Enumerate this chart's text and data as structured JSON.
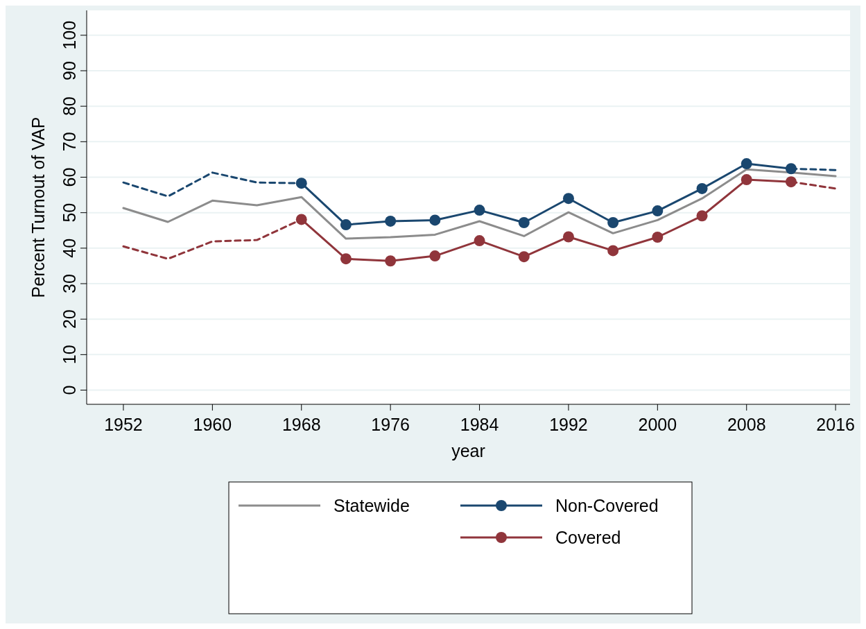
{
  "chart_data": {
    "type": "line",
    "xlabel": "year",
    "ylabel": "Percent Turnout of VAP",
    "x": [
      1952,
      1956,
      1960,
      1964,
      1968,
      1972,
      1976,
      1980,
      1984,
      1988,
      1992,
      1996,
      2000,
      2004,
      2008,
      2012,
      2016
    ],
    "xlim": [
      1948.7,
      2017.3
    ],
    "xticks": [
      1952,
      1960,
      1968,
      1976,
      1984,
      1992,
      2000,
      2008,
      2016
    ],
    "ylim": [
      -4,
      107
    ],
    "yticks": [
      0,
      10,
      20,
      30,
      40,
      50,
      60,
      70,
      80,
      90,
      100
    ],
    "grid": "y",
    "legend": "bottom",
    "series": [
      {
        "name": "Statewide",
        "color": "#8c8c8c",
        "marker": "none",
        "line_style": "solid",
        "values": [
          51.3,
          47.4,
          53.4,
          52.1,
          54.4,
          42.7,
          43.1,
          43.8,
          47.6,
          43.4,
          50.1,
          44.2,
          47.9,
          54.0,
          62.2,
          61.3,
          60.3
        ]
      },
      {
        "name": "Non-Covered",
        "color": "#1a476f",
        "marker": "circle",
        "line_style": "solid",
        "values": [
          null,
          null,
          null,
          null,
          58.3,
          46.6,
          47.6,
          47.9,
          50.7,
          47.2,
          54.0,
          47.2,
          50.5,
          56.8,
          63.8,
          62.4,
          null
        ]
      },
      {
        "color": "#1a476f",
        "marker": "none",
        "line_style": "dashed",
        "values": [
          58.5,
          54.6,
          61.3,
          58.5,
          58.3,
          null,
          null,
          null,
          null,
          null,
          null,
          null,
          null,
          null,
          null,
          62.4,
          62.0
        ]
      },
      {
        "name": "Covered",
        "color": "#90353b",
        "marker": "circle",
        "line_style": "solid",
        "values": [
          null,
          null,
          null,
          null,
          48.1,
          37.0,
          36.4,
          37.8,
          42.1,
          37.6,
          43.2,
          39.3,
          43.1,
          49.1,
          59.3,
          58.7,
          null
        ]
      },
      {
        "color": "#90353b",
        "marker": "none",
        "line_style": "dashed",
        "values": [
          40.5,
          37.0,
          41.9,
          42.3,
          48.1,
          null,
          null,
          null,
          null,
          null,
          null,
          null,
          null,
          null,
          null,
          58.7,
          56.8
        ]
      }
    ]
  }
}
